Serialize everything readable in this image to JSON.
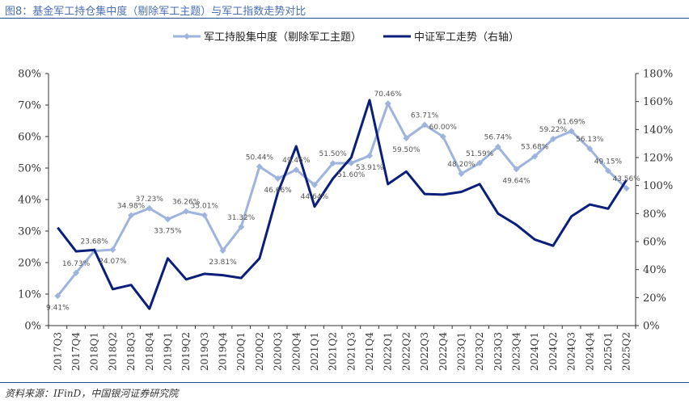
{
  "figure": {
    "title": "图8：基金军工持仓集中度（剔除军工主题）与军工指数走势对比",
    "source": "资料来源：IFinD，中国银河证券研究院"
  },
  "chart_data": {
    "type": "line",
    "categories": [
      "2017Q3",
      "2017Q4",
      "2018Q1",
      "2018Q2",
      "2018Q3",
      "2018Q4",
      "2019Q1",
      "2019Q2",
      "2019Q3",
      "2019Q4",
      "2020Q1",
      "2020Q2",
      "2020Q3",
      "2020Q4",
      "2021Q1",
      "2021Q2",
      "2021Q3",
      "2021Q4",
      "2022Q1",
      "2022Q2",
      "2022Q3",
      "2022Q4",
      "2023Q1",
      "2023Q2",
      "2023Q3",
      "2023Q4",
      "2024Q1",
      "2024Q2",
      "2024Q3",
      "2024Q4",
      "2025Q1",
      "2025Q2"
    ],
    "series": [
      {
        "name": "军工持股集中度（剔除军工主题）",
        "axis": "left",
        "color": "#9fb4dc",
        "marker": "diamond",
        "values": [
          9.41,
          16.73,
          23.68,
          24.07,
          34.98,
          37.23,
          33.75,
          36.26,
          35.01,
          23.81,
          31.32,
          50.44,
          46.66,
          49.46,
          44.64,
          51.5,
          51.6,
          53.91,
          70.46,
          59.5,
          63.71,
          60.0,
          48.2,
          51.59,
          56.74,
          49.64,
          53.68,
          59.22,
          61.69,
          56.13,
          49.15,
          43.56
        ],
        "labels": [
          "9.41%",
          "16.73%",
          "23.68%",
          "24.07%",
          "34.98%",
          "37.23%",
          "33.75%",
          "36.26%",
          "35.01%",
          "23.81%",
          "31.32%",
          "50.44%",
          "46.66%",
          "49.46%",
          "44.64%",
          "51.50%",
          "51.60%",
          "53.91%",
          "70.46%",
          "59.50%",
          "63.71%",
          "60.00%",
          "48.20%",
          "51.59%",
          "56.74%",
          "49.64%",
          "53.68%",
          "59.22%",
          "61.69%",
          "56.13%",
          "49.15%",
          "43.56%"
        ]
      },
      {
        "name": "中证军工走势（右轴）",
        "axis": "right",
        "color": "#0b1f7a",
        "values": [
          70,
          53,
          54,
          26,
          29,
          12,
          48,
          33,
          37,
          36,
          34,
          48,
          95,
          128,
          85,
          105,
          120,
          161,
          101,
          110,
          94,
          93.5,
          95.5,
          101,
          80,
          72,
          61.5,
          57,
          78,
          86.5,
          83.5,
          104
        ]
      }
    ],
    "y_left": {
      "min": 0,
      "max": 80,
      "step": 10,
      "ticks": [
        "0%",
        "10%",
        "20%",
        "30%",
        "40%",
        "50%",
        "60%",
        "70%",
        "80%"
      ]
    },
    "y_right": {
      "min": 0,
      "max": 180,
      "step": 20,
      "ticks": [
        "0%",
        "20%",
        "40%",
        "60%",
        "80%",
        "100%",
        "120%",
        "140%",
        "160%",
        "180%"
      ]
    },
    "grid": false,
    "legend_position": "top-center"
  },
  "colors": {
    "title": "#4a6fb5",
    "rule": "#2b4d8f",
    "axis": "#333333"
  }
}
